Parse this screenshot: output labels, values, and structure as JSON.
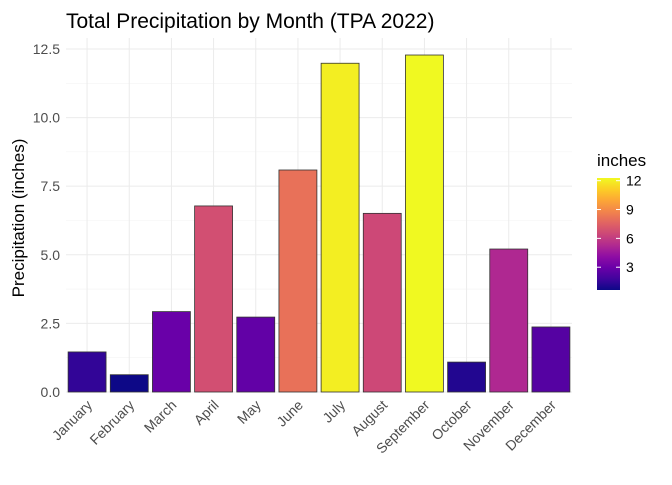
{
  "chart_data": {
    "type": "bar",
    "title": "Total Precipitation by Month (TPA 2022)",
    "xlabel": "",
    "ylabel": "Precipitation (inches)",
    "categories": [
      "January",
      "February",
      "March",
      "April",
      "May",
      "June",
      "July",
      "August",
      "September",
      "October",
      "November",
      "December"
    ],
    "values": [
      1.46,
      0.63,
      2.93,
      6.78,
      2.73,
      8.09,
      11.98,
      6.51,
      12.28,
      1.09,
      5.21,
      2.37
    ],
    "ylim": [
      0,
      12.9
    ],
    "y_ticks": [
      0.0,
      2.5,
      5.0,
      7.5,
      10.0,
      12.5
    ],
    "y_tick_labels": [
      "0.0",
      "2.5",
      "5.0",
      "7.5",
      "10.0",
      "12.5"
    ],
    "grid": true,
    "color_scale": {
      "name": "plasma",
      "title": "inches",
      "range": [
        0.63,
        12.28
      ],
      "ticks": [
        3,
        6,
        9,
        12
      ],
      "tick_labels": [
        "3",
        "6",
        "9",
        "12"
      ]
    },
    "legend": {
      "position": "right"
    }
  }
}
